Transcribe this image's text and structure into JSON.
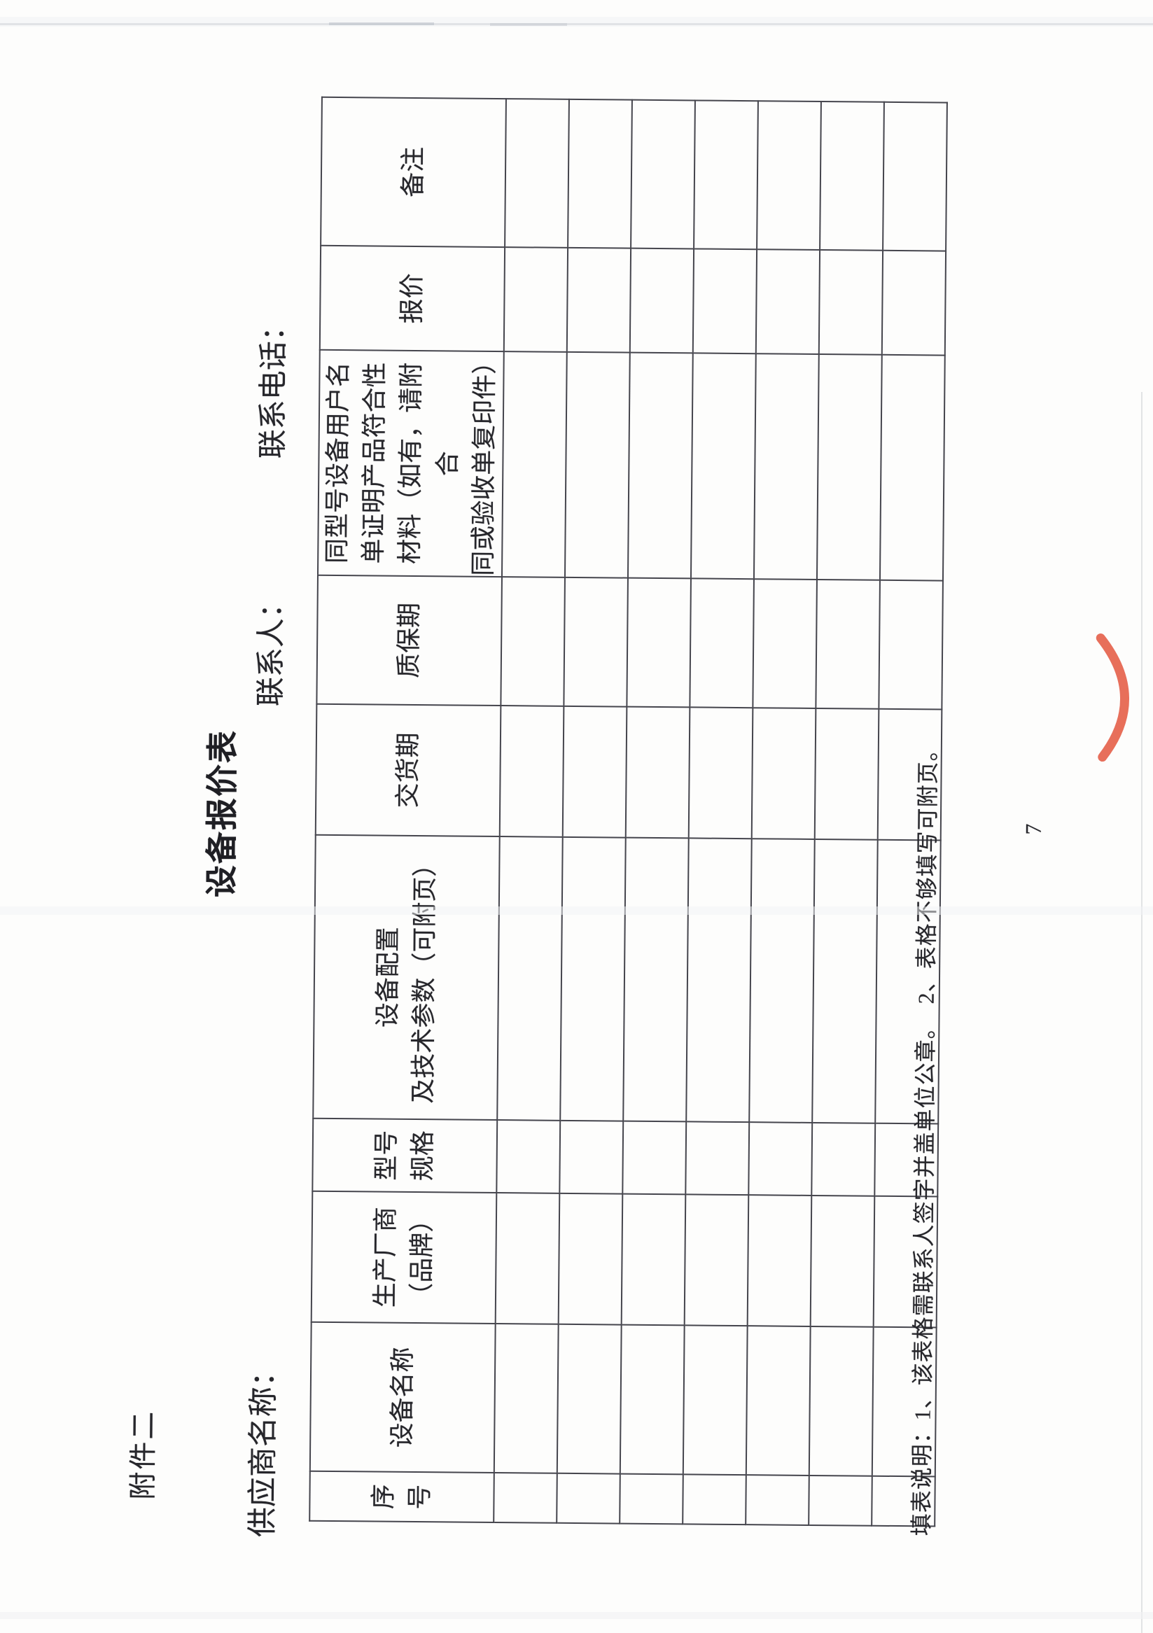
{
  "page": {
    "attachment_label": "附件二",
    "title": "设备报价表",
    "supplier_name_label": "供应商名称：",
    "contact_person_label": "联系人：",
    "contact_phone_label": "联系电话：",
    "notes": "填表说明：1、该表格需联系人签字并盖单位公章。　2、表格不够填写可附页。",
    "page_number": "7"
  },
  "table": {
    "headers": [
      {
        "key": "index",
        "label": "序号",
        "lines": [
          "序",
          "号"
        ]
      },
      {
        "key": "equipment-name",
        "label": "设备名称",
        "lines": [
          "设备名称"
        ]
      },
      {
        "key": "manufacturer-brand",
        "label": "生产厂商（品牌）",
        "lines": [
          "生产厂商",
          "（品牌）"
        ]
      },
      {
        "key": "model-spec",
        "label": "型号规格",
        "lines": [
          "型号",
          "规格"
        ]
      },
      {
        "key": "config-tech-params",
        "label": "设备配置及技术参数（可附页）",
        "lines": [
          "设备配置",
          "及技术参数（可附页）"
        ]
      },
      {
        "key": "delivery-period",
        "label": "交货期",
        "lines": [
          "交货期"
        ]
      },
      {
        "key": "warranty-period",
        "label": "质保期",
        "lines": [
          "质保期"
        ]
      },
      {
        "key": "same-model-user-proof",
        "label": "同型号设备用户名单证明产品符合性材料（如有，请附合同或验收单复印件）",
        "lines": [
          "同型号设备用户名",
          "单证明产品符合性",
          "材料（如有，请附合",
          "同或验收单复印件）"
        ]
      },
      {
        "key": "quote-price",
        "label": "报价",
        "lines": [
          "报价"
        ]
      },
      {
        "key": "remarks",
        "label": "备注",
        "lines": [
          "备注"
        ]
      }
    ],
    "empty_row_count": 7
  },
  "colors": {
    "paper": "#fdfdfc",
    "ink": "#26262b",
    "grid_line": "#45454d",
    "stamp_red": "#e45f49"
  }
}
